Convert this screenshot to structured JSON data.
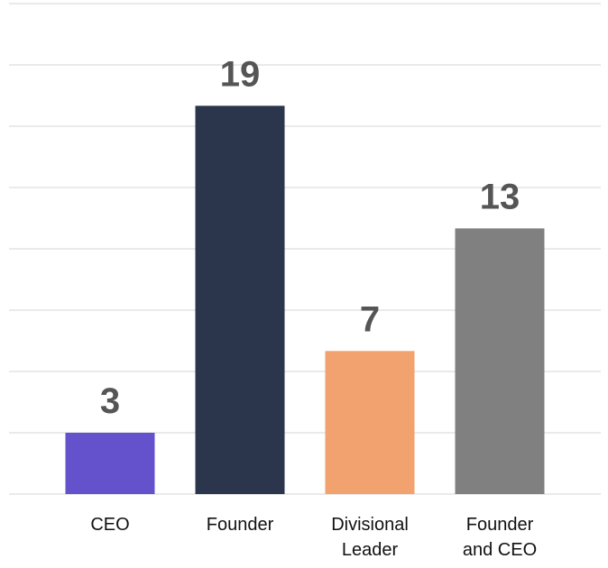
{
  "chart_data": {
    "type": "bar",
    "categories": [
      "CEO",
      "Founder",
      "Divisional Leader",
      "Founder and CEO"
    ],
    "values": [
      3,
      19,
      7,
      13
    ],
    "colors": [
      "#6352cc",
      "#2b364d",
      "#f2a26e",
      "#808080"
    ],
    "ylim": [
      0,
      24
    ],
    "yticks": [
      0,
      3,
      6,
      9,
      12,
      15,
      18,
      21,
      24
    ],
    "grid": true
  }
}
